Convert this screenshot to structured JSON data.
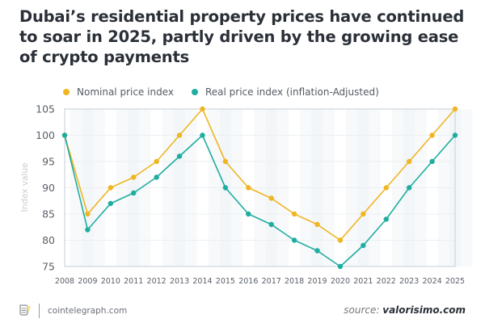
{
  "title": "Dubai’s residential property prices have continued to soar in 2025, partly driven by the growing ease of crypto payments",
  "footer": {
    "site": "cointelegraph.com",
    "source_prefix": "source:",
    "source_name": "valorisimo.com",
    "logo_icon": "cointelegraph-logo-icon"
  },
  "chart_data": {
    "type": "line",
    "title": "Dubai’s residential property prices have continued to soar in 2025, partly driven by the growing ease of crypto payments",
    "xlabel": "",
    "ylabel": "Index value",
    "x": [
      "2008",
      "2009",
      "2010",
      "2011",
      "2012",
      "2013",
      "2014",
      "2015",
      "2016",
      "2017",
      "2018",
      "2019",
      "2020",
      "2021",
      "2022",
      "2023",
      "2024",
      "2025"
    ],
    "ylim": [
      75,
      105
    ],
    "yticks": [
      75,
      80,
      85,
      90,
      95,
      100,
      105
    ],
    "grid": true,
    "legend_position": "top-left",
    "series": [
      {
        "name": "Nominal price index",
        "color": "#f0b522",
        "values": [
          100,
          85,
          90,
          92,
          95,
          100,
          105,
          95,
          90,
          88,
          85,
          83,
          80,
          85,
          90,
          95,
          100,
          105
        ]
      },
      {
        "name": "Real price index (inflation-Adjusted)",
        "color": "#1fada0",
        "values": [
          100,
          82,
          87,
          89,
          92,
          96,
          100,
          90,
          85,
          83,
          80,
          78,
          75,
          79,
          84,
          90,
          95,
          100
        ]
      }
    ]
  }
}
